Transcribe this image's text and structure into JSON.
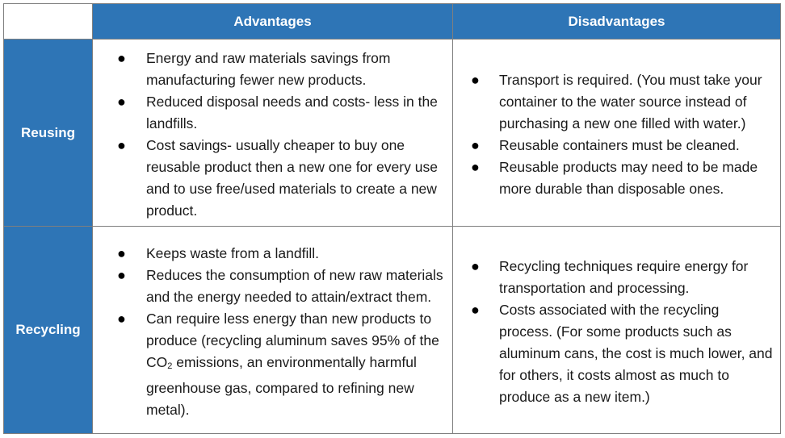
{
  "table": {
    "headers": [
      "Advantages",
      "Disadvantages"
    ],
    "rows": [
      {
        "label": "Reusing",
        "advantages": [
          "Energy and raw materials savings from manufacturing fewer new products.",
          "Reduced disposal needs and costs- less in the landfills.",
          "Cost savings- usually cheaper to buy one reusable product then a new one for every use and to use free/used materials to create a new product."
        ],
        "disadvantages": [
          "Transport is required. (You must take your container to the water source instead of purchasing a new one filled with water.)",
          "Reusable containers must be cleaned.",
          "Reusable products may need to be made more durable than disposable ones."
        ]
      },
      {
        "label": "Recycling",
        "advantages": [
          "Keeps waste from a landfill.",
          "Reduces the consumption of new raw materials and the energy needed to attain/extract them.",
          {
            "before": "Can require less energy than new products to produce (recycling aluminum saves 95% of the CO",
            "subscript": "2",
            "after": " emissions, an environmentally harmful greenhouse gas, compared to refining new metal)."
          }
        ],
        "disadvantages": [
          "Recycling techniques require energy for transportation and processing.",
          "Costs associated with the recycling process. (For some products such as aluminum cans, the cost is much lower, and for others, it costs almost as much to produce as a new item.)"
        ]
      }
    ]
  },
  "bullet_glyph": "●"
}
